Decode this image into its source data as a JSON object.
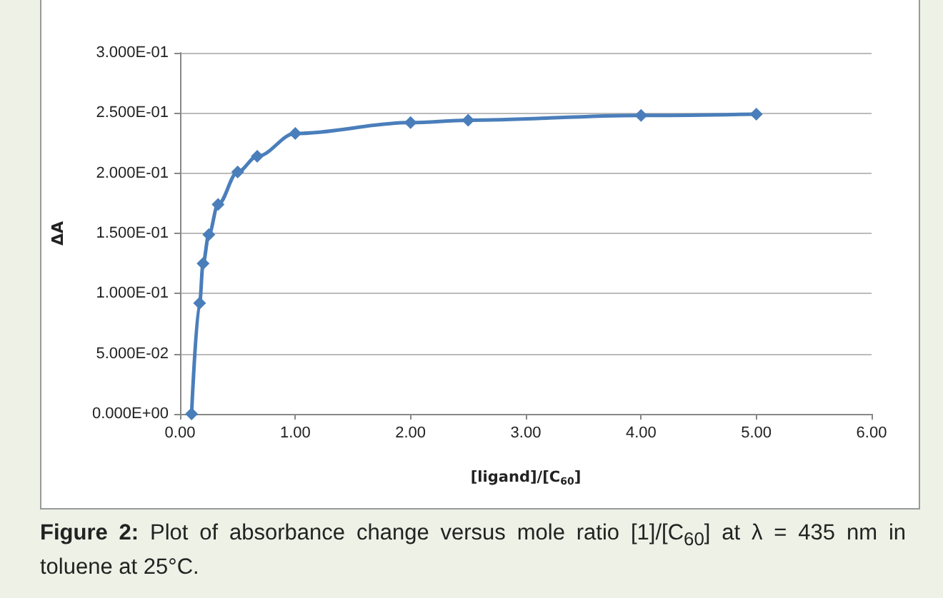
{
  "chart_data": {
    "type": "line",
    "xlabel": "[ligand]/[C$_{60}$]",
    "ylabel": "ΔA",
    "x": [
      0.1,
      0.17,
      0.2,
      0.25,
      0.33,
      0.5,
      0.67,
      1.0,
      2.0,
      2.5,
      4.0,
      5.0
    ],
    "series": [
      {
        "color": "#4a7ebb",
        "values": [
          0,
          0.092,
          0.125,
          0.149,
          0.174,
          0.201,
          0.214,
          0.233,
          0.242,
          0.244,
          0.248,
          0.249
        ]
      }
    ],
    "xlim": [
      0,
      6
    ],
    "xticks": [
      {
        "value": 0,
        "label": "0.00"
      },
      {
        "value": 1,
        "label": "1.00"
      },
      {
        "value": 2,
        "label": "2.00"
      },
      {
        "value": 3,
        "label": "3.00"
      },
      {
        "value": 4,
        "label": "4.00"
      },
      {
        "value": 5,
        "label": "5.00"
      },
      {
        "value": 6,
        "label": "6.00"
      }
    ],
    "ylim": [
      0,
      0.3
    ],
    "yticks": [
      {
        "value": 0,
        "label": "0.000E+00"
      },
      {
        "value": 0.05,
        "label": "5.000E-02"
      },
      {
        "value": 0.1,
        "label": "1.000E-01"
      },
      {
        "value": 0.15,
        "label": "1.500E-01"
      },
      {
        "value": 0.2,
        "label": "2.000E-01"
      },
      {
        "value": 0.25,
        "label": "2.500E-01"
      },
      {
        "value": 0.3,
        "label": "3.000E-01"
      }
    ],
    "grid": "y",
    "marker": "diamond",
    "line_style": "solid",
    "annotations": [
      "Figure 2: Plot of absorbance change versus mole ratio [1]/[C$_{60}$] at λ = 435 nm in toluene at 25°C."
    ]
  }
}
